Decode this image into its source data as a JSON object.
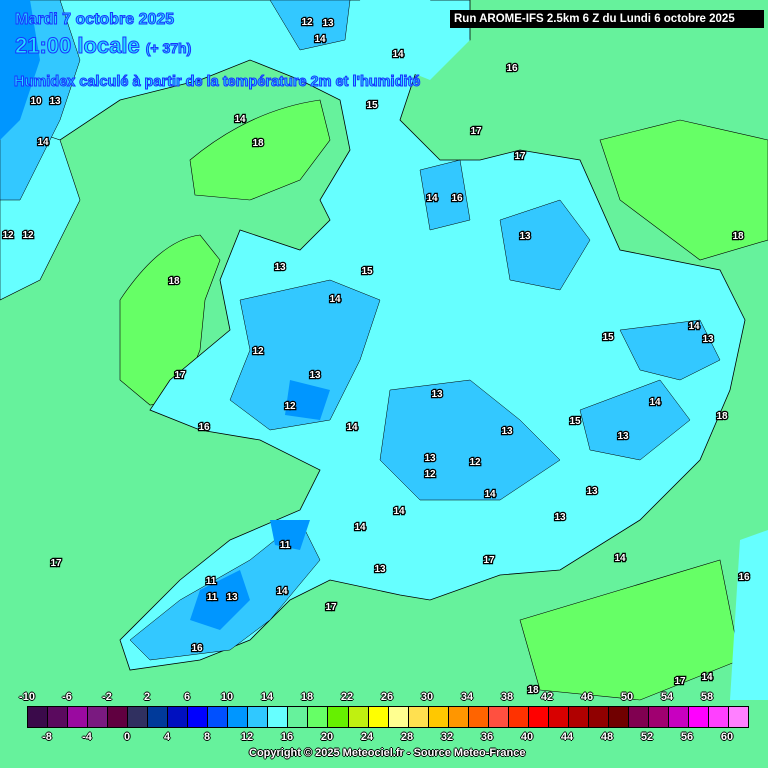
{
  "header": {
    "date": "Mardi 7 octobre 2025",
    "time": "21:00 locale",
    "lead": "(+ 37h)",
    "description": "Humidex calculé à partir de la température 2m et l'humidité",
    "run": "Run AROME-IFS 2.5km 6 Z du Lundi 6 octobre 2025"
  },
  "colorbar": {
    "top_labels": [
      "-10",
      "-6",
      "-2",
      "2",
      "6",
      "10",
      "14",
      "18",
      "22",
      "26",
      "30",
      "34",
      "38",
      "42",
      "46",
      "50",
      "54",
      "58"
    ],
    "bottom_labels": [
      "-8",
      "-4",
      "0",
      "4",
      "8",
      "12",
      "16",
      "20",
      "24",
      "28",
      "32",
      "36",
      "40",
      "44",
      "48",
      "52",
      "56",
      "60"
    ],
    "colors": [
      "#3a0a4a",
      "#5a0a5e",
      "#9a0aa0",
      "#7a1a80",
      "#600040",
      "#303060",
      "#003a9a",
      "#0010c0",
      "#0000ff",
      "#0050ff",
      "#0096ff",
      "#30c8ff",
      "#66ffff",
      "#66f29c",
      "#66ff66",
      "#66f000",
      "#c0f010",
      "#ffff00",
      "#ffff90",
      "#ffe050",
      "#ffc800",
      "#ff9600",
      "#ff6400",
      "#ff5040",
      "#ff3200",
      "#ff0000",
      "#d80000",
      "#b00000",
      "#900000",
      "#700000",
      "#800050",
      "#a00070",
      "#c800c0",
      "#ff00ff",
      "#ff40ff",
      "#ff80ff"
    ]
  },
  "map_labels": [
    "12",
    "13",
    "14",
    "14",
    "14",
    "15",
    "16",
    "17",
    "17",
    "18",
    "18",
    "14",
    "16",
    "14",
    "13",
    "13",
    "12",
    "15",
    "14",
    "18",
    "14",
    "12",
    "13",
    "17",
    "12",
    "13",
    "14",
    "16",
    "13",
    "15",
    "14",
    "13",
    "13",
    "14",
    "12",
    "14",
    "13",
    "14",
    "15",
    "13",
    "18",
    "11",
    "11",
    "11",
    "13",
    "14",
    "13",
    "17",
    "17",
    "16",
    "17",
    "16",
    "18",
    "17",
    "14",
    "10",
    "12",
    "13",
    "14",
    "13",
    "12"
  ],
  "copyright": "Copyright © 2025 Meteociel.fr - Source Meteo-France"
}
